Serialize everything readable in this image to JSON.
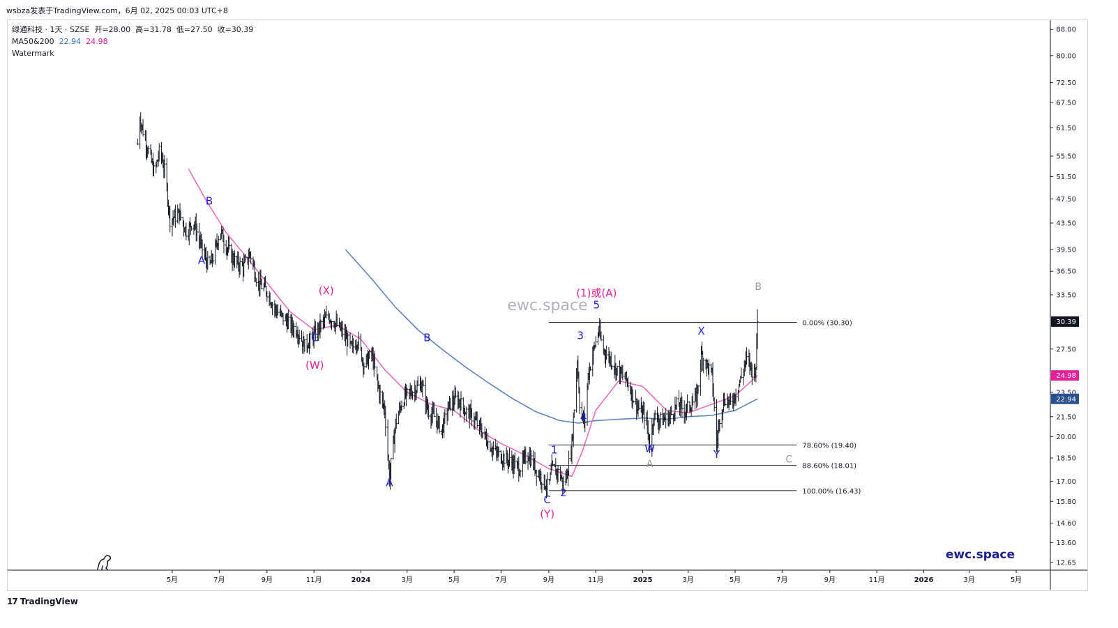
{
  "header": {
    "publisher": "wsbza发表于TradingView.com，6月 02, 2025 00:03 UTC+8"
  },
  "legend": {
    "symbol_line": "绿通科技 · 1天 · SZSE",
    "open_label": "开=28.00",
    "high_label": "高=31.78",
    "low_label": "低=27.50",
    "close_label": "收=30.39",
    "ma_name": "MA50&200",
    "ma50_value": "22.94",
    "ma200_value": "24.98",
    "watermark_label": "Watermark"
  },
  "watermark": {
    "center_text": "ewc.space",
    "corner_text": "ewc.space"
  },
  "footer": {
    "brand": "TradingView",
    "brand_mark": "17"
  },
  "colors": {
    "candle": "#131722",
    "ma50": "#5b83c2",
    "ma200": "#f06bc0",
    "wave_blue": "#1a1adb",
    "wave_magenta": "#e91e9a",
    "wave_gray": "#9598a1",
    "last_price_bg": "#131722",
    "ma200_badge_bg": "#e91e9a",
    "ma50_badge_bg": "#2a4f8f"
  },
  "chart_data": {
    "type": "candlestick",
    "symbol": "绿通科技",
    "interval": "1天",
    "exchange": "SZSE",
    "y_scale": "log",
    "ylim": [
      12.3,
      91
    ],
    "y_ticks": [
      "88.00",
      "80.00",
      "72.50",
      "67.50",
      "61.50",
      "55.50",
      "51.50",
      "47.50",
      "43.50",
      "39.50",
      "36.50",
      "33.50",
      "27.50",
      "23.50",
      "21.50",
      "20.00",
      "18.50",
      "17.00",
      "15.80",
      "14.60",
      "13.60",
      "12.65"
    ],
    "x_ticks": [
      {
        "label": "5月",
        "date": "2023-05-01",
        "year": false
      },
      {
        "label": "7月",
        "date": "2023-07-01",
        "year": false
      },
      {
        "label": "9月",
        "date": "2023-09-01",
        "year": false
      },
      {
        "label": "11月",
        "date": "2023-11-01",
        "year": false
      },
      {
        "label": "2024",
        "date": "2024-01-01",
        "year": true
      },
      {
        "label": "3月",
        "date": "2024-03-01",
        "year": false
      },
      {
        "label": "5月",
        "date": "2024-05-01",
        "year": false
      },
      {
        "label": "7月",
        "date": "2024-07-01",
        "year": false
      },
      {
        "label": "9月",
        "date": "2024-09-01",
        "year": false
      },
      {
        "label": "11月",
        "date": "2024-11-01",
        "year": false
      },
      {
        "label": "2025",
        "date": "2025-01-01",
        "year": true
      },
      {
        "label": "3月",
        "date": "2025-03-01",
        "year": false
      },
      {
        "label": "5月",
        "date": "2025-05-01",
        "year": false
      },
      {
        "label": "7月",
        "date": "2025-07-01",
        "year": false
      },
      {
        "label": "9月",
        "date": "2025-09-01",
        "year": false
      },
      {
        "label": "11月",
        "date": "2025-11-01",
        "year": false
      },
      {
        "label": "2026",
        "date": "2026-01-01",
        "year": true
      },
      {
        "label": "3月",
        "date": "2026-03-01",
        "year": false
      },
      {
        "label": "5月",
        "date": "2026-05-01",
        "year": false
      }
    ],
    "price_path": [
      [
        "2023-03-17",
        58
      ],
      [
        "2023-03-20",
        64
      ],
      [
        "2023-03-25",
        60
      ],
      [
        "2023-04-01",
        56
      ],
      [
        "2023-04-08",
        52
      ],
      [
        "2023-04-15",
        57
      ],
      [
        "2023-04-22",
        52
      ],
      [
        "2023-04-28",
        44
      ],
      [
        "2023-05-10",
        45
      ],
      [
        "2023-05-20",
        42
      ],
      [
        "2023-05-28",
        44
      ],
      [
        "2023-06-05",
        41
      ],
      [
        "2023-06-12",
        38.5
      ],
      [
        "2023-06-18",
        37
      ],
      [
        "2023-06-25",
        39
      ],
      [
        "2023-07-02",
        42.5
      ],
      [
        "2023-07-10",
        40
      ],
      [
        "2023-07-20",
        38
      ],
      [
        "2023-08-01",
        37
      ],
      [
        "2023-08-10",
        39
      ],
      [
        "2023-08-20",
        35
      ],
      [
        "2023-09-01",
        34
      ],
      [
        "2023-09-10",
        32
      ],
      [
        "2023-09-20",
        31
      ],
      [
        "2023-10-01",
        30
      ],
      [
        "2023-10-10",
        29.5
      ],
      [
        "2023-10-20",
        27.8
      ],
      [
        "2023-10-28",
        28.5
      ],
      [
        "2023-11-10",
        30
      ],
      [
        "2023-11-20",
        31
      ],
      [
        "2023-12-01",
        30
      ],
      [
        "2023-12-10",
        29
      ],
      [
        "2023-12-20",
        27.5
      ],
      [
        "2023-12-28",
        28.5
      ],
      [
        "2024-01-05",
        26
      ],
      [
        "2024-01-15",
        27
      ],
      [
        "2024-01-25",
        23.5
      ],
      [
        "2024-02-01",
        22
      ],
      [
        "2024-02-07",
        17.2
      ],
      [
        "2024-02-15",
        21
      ],
      [
        "2024-02-25",
        23
      ],
      [
        "2024-03-05",
        23.5
      ],
      [
        "2024-03-20",
        24.2
      ],
      [
        "2024-03-28",
        22
      ],
      [
        "2024-04-05",
        21.5
      ],
      [
        "2024-04-15",
        20.5
      ],
      [
        "2024-04-25",
        22.5
      ],
      [
        "2024-05-05",
        23
      ],
      [
        "2024-05-15",
        22
      ],
      [
        "2024-05-25",
        21.5
      ],
      [
        "2024-06-05",
        20.5
      ],
      [
        "2024-06-15",
        19.5
      ],
      [
        "2024-06-25",
        18.8
      ],
      [
        "2024-07-05",
        18.5
      ],
      [
        "2024-07-15",
        18.2
      ],
      [
        "2024-07-25",
        17.8
      ],
      [
        "2024-08-05",
        18.8
      ],
      [
        "2024-08-15",
        17.8
      ],
      [
        "2024-08-25",
        17
      ],
      [
        "2024-09-01",
        16.6
      ],
      [
        "2024-09-05",
        17.8
      ],
      [
        "2024-09-15",
        17.5
      ],
      [
        "2024-09-20",
        16.8
      ],
      [
        "2024-09-25",
        17.5
      ],
      [
        "2024-10-01",
        19.5
      ],
      [
        "2024-10-08",
        26.5
      ],
      [
        "2024-10-12",
        21.5
      ],
      [
        "2024-10-18",
        21.2
      ],
      [
        "2024-10-22",
        25
      ],
      [
        "2024-10-28",
        27
      ],
      [
        "2024-11-05",
        29.5
      ],
      [
        "2024-11-10",
        27.5
      ],
      [
        "2024-11-20",
        26.5
      ],
      [
        "2024-11-28",
        25.5
      ],
      [
        "2024-12-05",
        25
      ],
      [
        "2024-12-12",
        24.5
      ],
      [
        "2024-12-20",
        23
      ],
      [
        "2024-12-28",
        22
      ],
      [
        "2025-01-05",
        21.5
      ],
      [
        "2025-01-10",
        19.4
      ],
      [
        "2025-01-15",
        21.5
      ],
      [
        "2025-01-25",
        21.2
      ],
      [
        "2025-02-05",
        21.5
      ],
      [
        "2025-02-15",
        22.5
      ],
      [
        "2025-02-25",
        22
      ],
      [
        "2025-03-05",
        22.5
      ],
      [
        "2025-03-12",
        23
      ],
      [
        "2025-03-18",
        27
      ],
      [
        "2025-03-25",
        26
      ],
      [
        "2025-04-01",
        25
      ],
      [
        "2025-04-07",
        19.5
      ],
      [
        "2025-04-12",
        22
      ],
      [
        "2025-04-18",
        23
      ],
      [
        "2025-04-25",
        22.5
      ],
      [
        "2025-05-02",
        23.5
      ],
      [
        "2025-05-10",
        25
      ],
      [
        "2025-05-15",
        26.5
      ],
      [
        "2025-05-20",
        26
      ],
      [
        "2025-05-25",
        25
      ],
      [
        "2025-05-28",
        26
      ],
      [
        "2025-05-30",
        30.39
      ]
    ],
    "ma50_series": {
      "name": "MA50",
      "last_value": 22.94,
      "points": [
        [
          "2023-12-12",
          39.5
        ],
        [
          "2024-01-15",
          35.5
        ],
        [
          "2024-02-15",
          32
        ],
        [
          "2024-03-15",
          29.5
        ],
        [
          "2024-04-15",
          27.5
        ],
        [
          "2024-05-15",
          25.8
        ],
        [
          "2024-06-15",
          24.3
        ],
        [
          "2024-07-15",
          23
        ],
        [
          "2024-08-15",
          21.9
        ],
        [
          "2024-09-15",
          21.2
        ],
        [
          "2024-10-10",
          21
        ],
        [
          "2024-11-01",
          21.2
        ],
        [
          "2024-12-01",
          21.3
        ],
        [
          "2025-01-01",
          21.4
        ],
        [
          "2025-02-01",
          21.3
        ],
        [
          "2025-03-01",
          21.5
        ],
        [
          "2025-04-01",
          21.6
        ],
        [
          "2025-05-01",
          22
        ],
        [
          "2025-05-30",
          22.94
        ]
      ]
    },
    "ma200_series": {
      "name": "MA200",
      "last_value": 24.98,
      "points": [
        [
          "2023-05-22",
          53
        ],
        [
          "2023-06-15",
          47
        ],
        [
          "2023-07-10",
          42
        ],
        [
          "2023-08-01",
          39
        ],
        [
          "2023-09-01",
          35
        ],
        [
          "2023-10-01",
          31.5
        ],
        [
          "2023-11-01",
          29.5
        ],
        [
          "2023-12-01",
          30
        ],
        [
          "2024-01-01",
          28.5
        ],
        [
          "2024-02-01",
          25.5
        ],
        [
          "2024-03-01",
          23.5
        ],
        [
          "2024-04-01",
          22.5
        ],
        [
          "2024-05-01",
          22
        ],
        [
          "2024-06-01",
          20.5
        ],
        [
          "2024-07-01",
          19.5
        ],
        [
          "2024-08-01",
          18.7
        ],
        [
          "2024-09-01",
          17.8
        ],
        [
          "2024-10-01",
          17.3
        ],
        [
          "2024-10-15",
          19
        ],
        [
          "2024-11-01",
          22
        ],
        [
          "2024-12-01",
          24.5
        ],
        [
          "2025-01-01",
          24
        ],
        [
          "2025-02-01",
          22
        ],
        [
          "2025-03-01",
          21.8
        ],
        [
          "2025-04-01",
          22.5
        ],
        [
          "2025-05-01",
          23.2
        ],
        [
          "2025-05-30",
          24.98
        ]
      ]
    },
    "fib_levels": [
      {
        "label": "0.00% (30.30)",
        "price": 30.3,
        "from": "2024-09-01",
        "to": "2025-07-20"
      },
      {
        "label": "78.60% (19.40)",
        "price": 19.4,
        "from": "2024-09-01",
        "to": "2025-07-20"
      },
      {
        "label": "88.60% (18.01)",
        "price": 18.01,
        "from": "2024-09-01",
        "to": "2025-07-20"
      },
      {
        "label": "100.00% (16.43)",
        "price": 16.43,
        "from": "2024-09-01",
        "to": "2025-07-20"
      }
    ],
    "wave_labels": [
      {
        "text": "B",
        "date": "2023-06-18",
        "price": 46.5,
        "color": "blue"
      },
      {
        "text": "A",
        "date": "2023-06-08",
        "price": 37.5,
        "color": "blue"
      },
      {
        "text": "(X)",
        "date": "2023-11-17",
        "price": 33.6,
        "color": "magenta"
      },
      {
        "text": "C",
        "date": "2023-11-02",
        "price": 28.3,
        "color": "blue"
      },
      {
        "text": "(W)",
        "date": "2023-11-02",
        "price": 25.6,
        "color": "magenta"
      },
      {
        "text": "B",
        "date": "2024-03-27",
        "price": 28.3,
        "color": "blue"
      },
      {
        "text": "A",
        "date": "2024-02-07",
        "price": 16.7,
        "color": "blue"
      },
      {
        "text": "1",
        "date": "2024-09-08",
        "price": 18.8,
        "color": "blue"
      },
      {
        "text": "2",
        "date": "2024-09-20",
        "price": 16.1,
        "color": "blue"
      },
      {
        "text": "C",
        "date": "2024-08-30",
        "price": 15.7,
        "color": "blue"
      },
      {
        "text": "(Y)",
        "date": "2024-08-30",
        "price": 14.9,
        "color": "magenta"
      },
      {
        "text": "3",
        "date": "2024-10-12",
        "price": 28.5,
        "color": "blue"
      },
      {
        "text": "4",
        "date": "2024-10-16",
        "price": 21.2,
        "color": "blue"
      },
      {
        "text": "5",
        "date": "2024-11-02",
        "price": 31.9,
        "color": "blue"
      },
      {
        "text": "(1)或(A)",
        "date": "2024-11-02",
        "price": 33.3,
        "color": "magenta"
      },
      {
        "text": "W",
        "date": "2025-01-10",
        "price": 18.9,
        "color": "blue"
      },
      {
        "text": "A",
        "date": "2025-01-10",
        "price": 17.9,
        "color": "gray"
      },
      {
        "text": "X",
        "date": "2025-03-18",
        "price": 29,
        "color": "blue"
      },
      {
        "text": "Y",
        "date": "2025-04-07",
        "price": 18.5,
        "color": "blue"
      },
      {
        "text": "B",
        "date": "2025-05-31",
        "price": 34.1,
        "color": "gray"
      },
      {
        "text": "C",
        "date": "2025-07-10",
        "price": 18.2,
        "color": "gray"
      }
    ],
    "last_price": {
      "value": 30.39,
      "label": "30.39"
    },
    "ma_badges": [
      {
        "label": "24.98",
        "price": 24.98,
        "kind": "ma200"
      },
      {
        "label": "22.94",
        "price": 22.94,
        "kind": "ma50"
      }
    ]
  }
}
